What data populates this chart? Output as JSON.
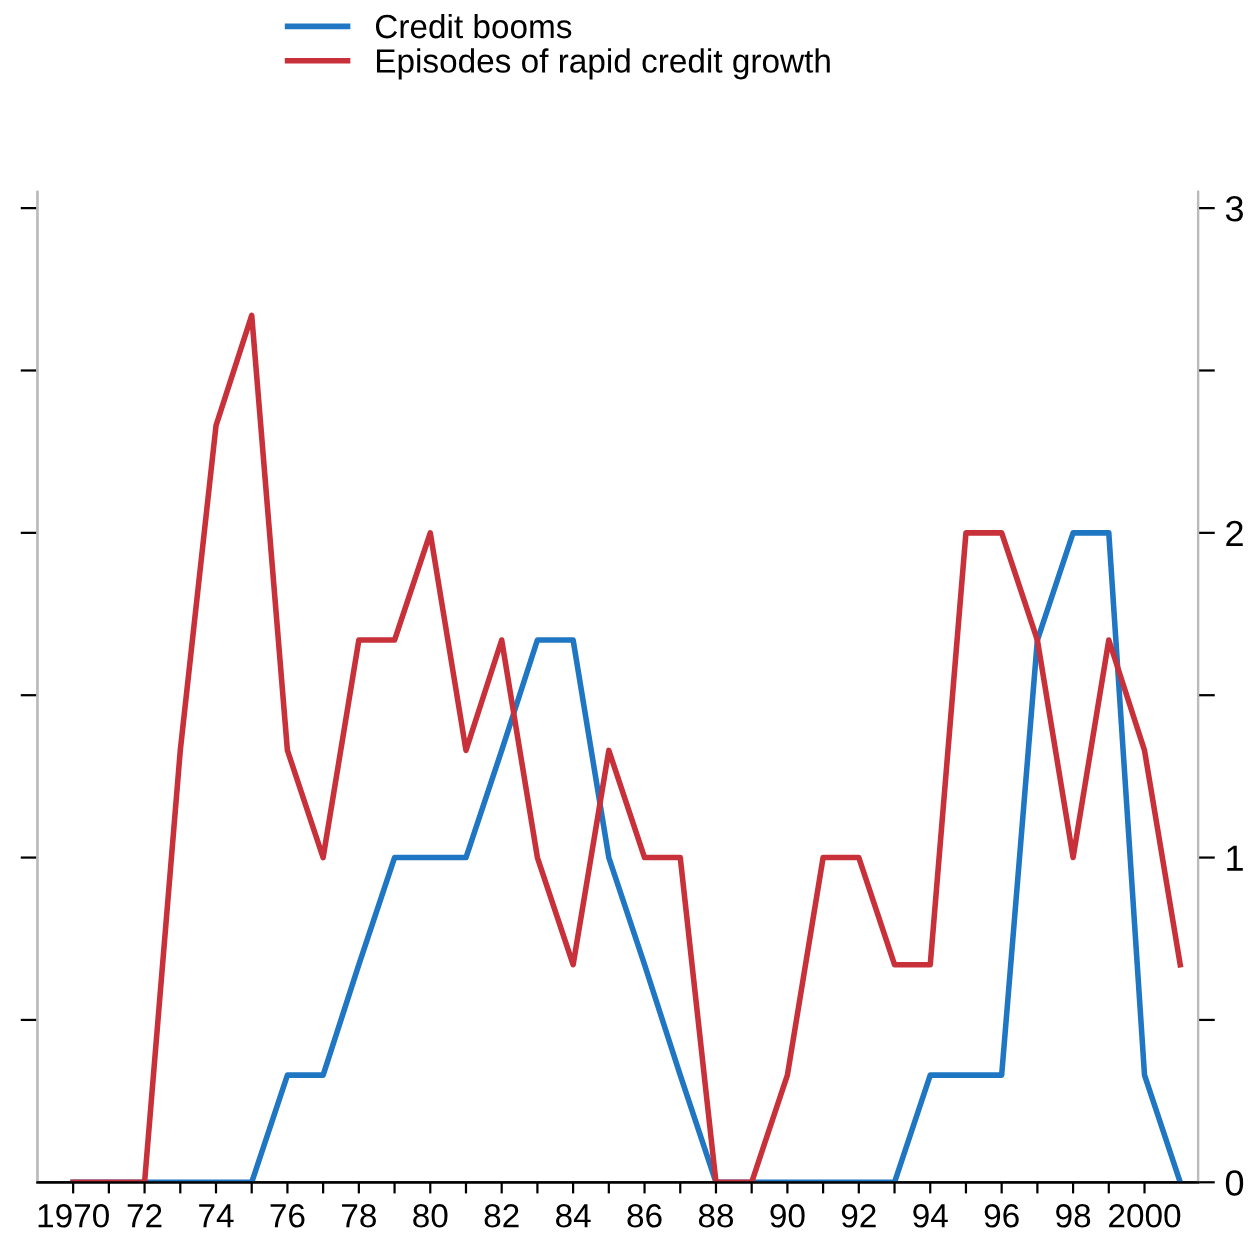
{
  "chart_data": {
    "type": "line",
    "x": [
      1970,
      1971,
      1972,
      1973,
      1974,
      1975,
      1976,
      1977,
      1978,
      1979,
      1980,
      1981,
      1982,
      1983,
      1984,
      1985,
      1986,
      1987,
      1988,
      1989,
      1990,
      1991,
      1992,
      1993,
      1994,
      1995,
      1996,
      1997,
      1998,
      1999,
      2000,
      2001
    ],
    "series": [
      {
        "name": "Credit booms",
        "color": "#1f77c4",
        "axis": "y2",
        "values": [
          0,
          0,
          0,
          0,
          0,
          0,
          0.33,
          0.33,
          0.67,
          1,
          1,
          1,
          1.33,
          1.67,
          1.67,
          1,
          0.67,
          0.33,
          0,
          0,
          0,
          0,
          0,
          0,
          0.33,
          0.33,
          0.33,
          1.67,
          2,
          2,
          0.33,
          0
        ]
      },
      {
        "name": "Episodes of rapid credit growth",
        "color": "#c8313a",
        "axis": "y2",
        "values": [
          0,
          0,
          0,
          1.33,
          2.33,
          2.67,
          1.33,
          1,
          1.67,
          1.67,
          2,
          1.33,
          1.67,
          1,
          0.67,
          1.33,
          1,
          1,
          0,
          0,
          0.33,
          1,
          1,
          0.67,
          0.67,
          2,
          2,
          1.67,
          1,
          1.67,
          1.33,
          0.67
        ]
      }
    ],
    "xlim": [
      1969,
      2001.5
    ],
    "xticks": [
      1970,
      {
        "value": 1971,
        "label": null
      },
      {
        "value": 1972,
        "label": "72"
      },
      {
        "value": 1973,
        "label": null
      },
      {
        "value": 1974,
        "label": "74"
      },
      {
        "value": 1975,
        "label": null
      },
      {
        "value": 1976,
        "label": "76"
      },
      {
        "value": 1977,
        "label": null
      },
      {
        "value": 1978,
        "label": "78"
      },
      {
        "value": 1979,
        "label": null
      },
      {
        "value": 1980,
        "label": "80"
      },
      {
        "value": 1981,
        "label": null
      },
      {
        "value": 1982,
        "label": "82"
      },
      {
        "value": 1983,
        "label": null
      },
      {
        "value": 1984,
        "label": "84"
      },
      {
        "value": 1985,
        "label": null
      },
      {
        "value": 1986,
        "label": "86"
      },
      {
        "value": 1987,
        "label": null
      },
      {
        "value": 1988,
        "label": "88"
      },
      {
        "value": 1989,
        "label": null
      },
      {
        "value": 1990,
        "label": "90"
      },
      {
        "value": 1991,
        "label": null
      },
      {
        "value": 1992,
        "label": "92"
      },
      {
        "value": 1993,
        "label": null
      },
      {
        "value": 1994,
        "label": "94"
      },
      {
        "value": 1995,
        "label": null
      },
      {
        "value": 1996,
        "label": "96"
      },
      {
        "value": 1997,
        "label": null
      },
      {
        "value": 1998,
        "label": "98"
      },
      {
        "value": 1999,
        "label": null
      },
      2000
    ],
    "y2lim": [
      0,
      3.05
    ],
    "y2ticks": [
      0,
      {
        "value": 0.5,
        "label": null
      },
      1,
      {
        "value": 1.5,
        "label": null
      },
      2,
      {
        "value": 2.5,
        "label": null
      },
      3
    ],
    "legend": "top",
    "grid": false,
    "marker": "none",
    "line_style": "solid"
  }
}
